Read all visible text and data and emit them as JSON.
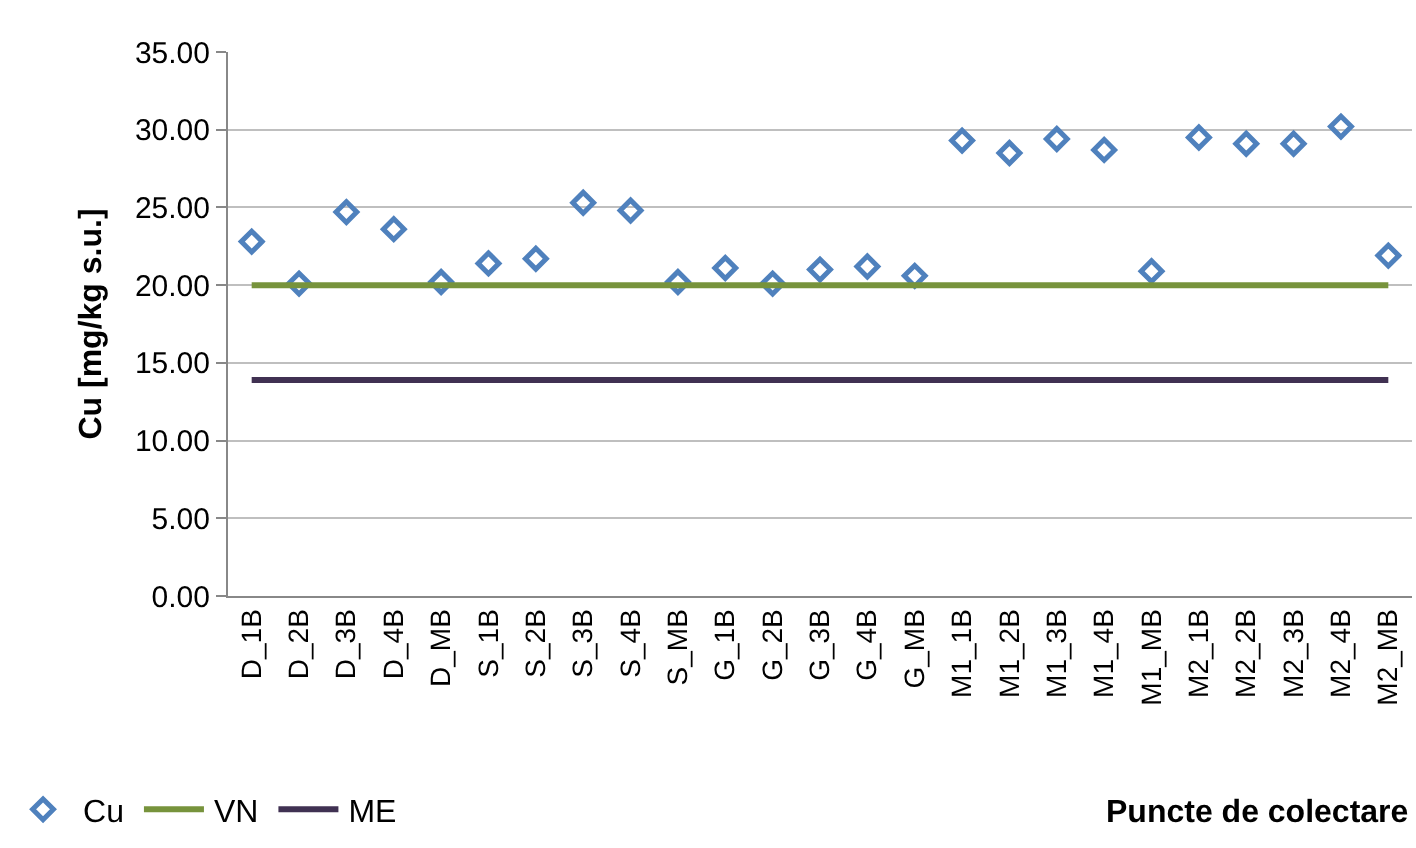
{
  "chart_data": {
    "type": "scatter",
    "ylabel": "Cu [mg/kg s.u.]",
    "xlabel": "Puncte de colectare",
    "categories": [
      "D_1B",
      "D_2B",
      "D_3B",
      "D_4B",
      "D_MB",
      "S_1B",
      "S_2B",
      "S_3B",
      "S_4B",
      "S_MB",
      "G_1B",
      "G_2B",
      "G_3B",
      "G_4B",
      "G_MB",
      "M1_1B",
      "M1_2B",
      "M1_3B",
      "M1_4B",
      "M1_MB",
      "M2_1B",
      "M2_2B",
      "M2_3B",
      "M2_4B",
      "M2_MB"
    ],
    "series": [
      {
        "name": "Cu",
        "color": "#4f81bd",
        "marker": "diamond",
        "values": [
          22.8,
          20.1,
          24.7,
          23.6,
          20.2,
          21.4,
          21.7,
          25.3,
          24.8,
          20.2,
          21.1,
          20.1,
          21.0,
          21.2,
          20.6,
          29.3,
          28.5,
          29.4,
          28.7,
          20.9,
          29.5,
          29.1,
          29.1,
          30.2,
          21.9
        ]
      },
      {
        "name": "VN",
        "type": "line",
        "color": "#77933c",
        "marker": "none",
        "values": [
          20,
          20,
          20,
          20,
          20,
          20,
          20,
          20,
          20,
          20,
          20,
          20,
          20,
          20,
          20,
          20,
          20,
          20,
          20,
          20,
          20,
          20,
          20,
          20,
          20
        ]
      },
      {
        "name": "ME",
        "type": "line",
        "color": "#403152",
        "marker": "none",
        "values": [
          13.9,
          13.9,
          13.9,
          13.9,
          13.9,
          13.9,
          13.9,
          13.9,
          13.9,
          13.9,
          13.9,
          13.9,
          13.9,
          13.9,
          13.9,
          13.9,
          13.9,
          13.9,
          13.9,
          13.9,
          13.9,
          13.9,
          13.9,
          13.9,
          13.9
        ]
      }
    ],
    "ylim": [
      0,
      35
    ],
    "yticks": [
      {
        "value": 0,
        "label": "0.00"
      },
      {
        "value": 5,
        "label": "5.00"
      },
      {
        "value": 10,
        "label": "10.00"
      },
      {
        "value": 15,
        "label": "15.00"
      },
      {
        "value": 20,
        "label": "20.00"
      },
      {
        "value": 25,
        "label": "25.00"
      },
      {
        "value": 30,
        "label": "30.00"
      },
      {
        "value": 35,
        "label": "35.00"
      }
    ],
    "grid": "y",
    "legend": "bottom left"
  }
}
